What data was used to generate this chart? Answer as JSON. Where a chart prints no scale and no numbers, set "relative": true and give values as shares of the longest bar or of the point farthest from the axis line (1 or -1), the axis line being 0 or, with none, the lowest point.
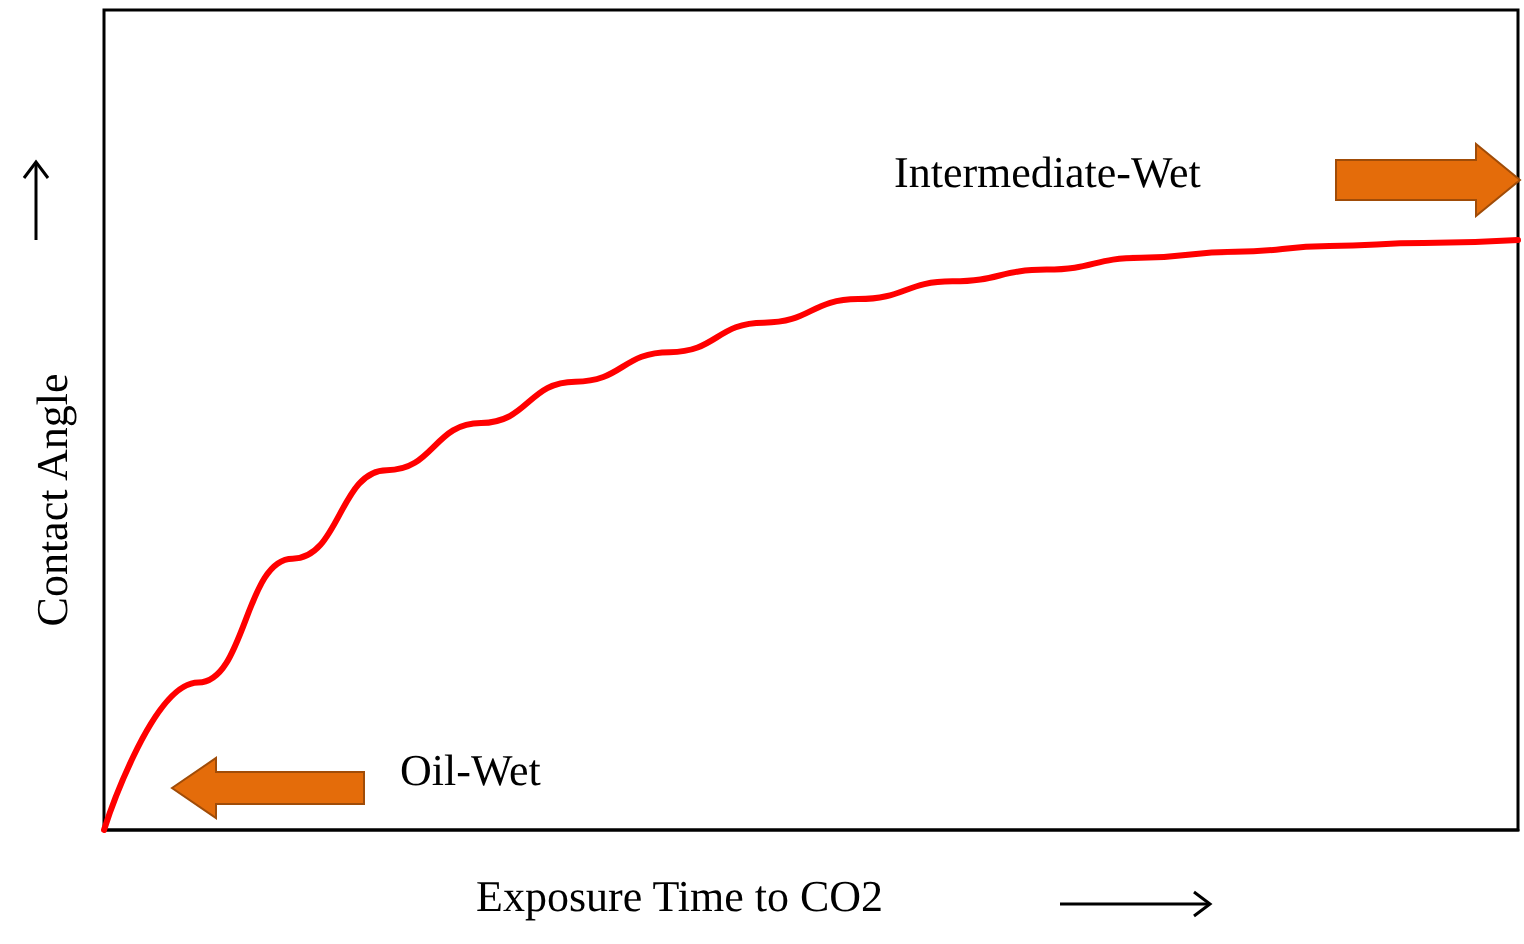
{
  "chart_data": {
    "type": "line",
    "relative": true,
    "xlabel": "Exposure Time to CO2",
    "ylabel": "Contact Angle",
    "categories": [
      null,
      null,
      null,
      null,
      null,
      null,
      null,
      null,
      null,
      null,
      null,
      null,
      null,
      null,
      null,
      null
    ],
    "series": [
      {
        "color": "#ff0000",
        "values": [
          0,
          0.25,
          0.46,
          0.61,
          0.69,
          0.76,
          0.81,
          0.86,
          0.9,
          0.93,
          0.95,
          0.97,
          0.98,
          0.99,
          0.995,
          1
        ]
      }
    ],
    "annotations": [
      "Intermediate-Wet",
      "Oil-Wet"
    ],
    "marker": "none",
    "line_style": "solid",
    "grid": false
  }
}
